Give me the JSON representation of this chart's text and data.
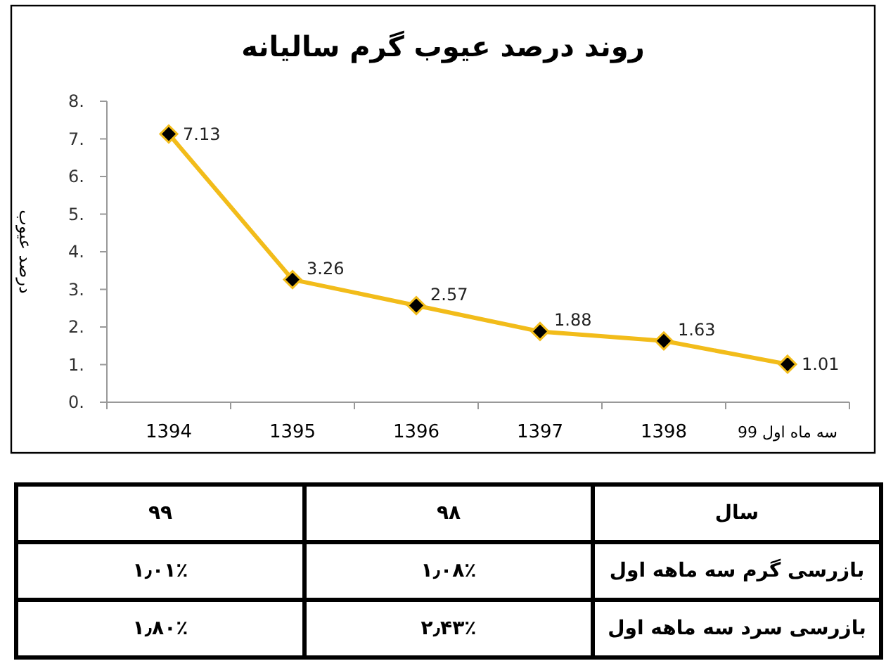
{
  "chart_data": {
    "type": "line",
    "title": "روند درصد  عیوب گرم  سالیانه",
    "ylabel": "درصد عیوب",
    "categories": [
      "1394",
      "1395",
      "1396",
      "1397",
      "1398",
      "سه ماه اول 99"
    ],
    "series": [
      {
        "color": "#f2bc1a",
        "values": [
          7.13,
          3.26,
          2.57,
          1.88,
          1.63,
          1.01
        ]
      }
    ],
    "ylim": [
      0,
      8
    ],
    "yticks": [
      {
        "value": 0,
        "label": "0."
      },
      {
        "value": 1,
        "label": "1."
      },
      {
        "value": 2,
        "label": "2."
      },
      {
        "value": 3,
        "label": "3."
      },
      {
        "value": 4,
        "label": "4."
      },
      {
        "value": 5,
        "label": "5."
      },
      {
        "value": 6,
        "label": "6."
      },
      {
        "value": 7,
        "label": "7."
      },
      {
        "value": 8,
        "label": "8."
      }
    ],
    "marker": "diamond",
    "data_labels": true,
    "grid": false,
    "annotations": [
      "سال",
      "۹۸",
      "۹۹",
      "بازرسی گرم سه ماهه اول",
      "۱٫۰۸٪",
      "۱٫۰۱٪",
      "بازرسی سرد سه ماهه اول",
      "۲٫۴۳٪",
      "۱٫۸۰٪"
    ]
  }
}
